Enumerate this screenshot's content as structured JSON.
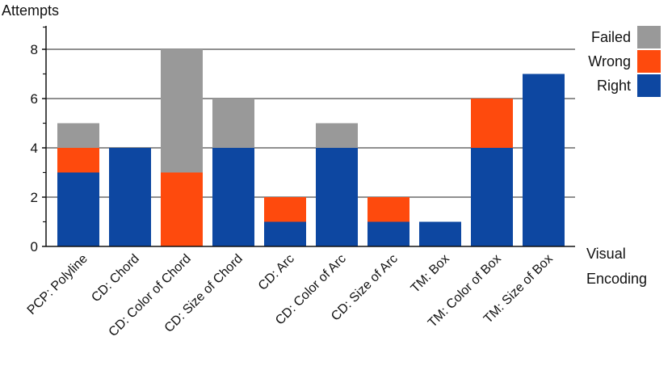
{
  "chart_data": {
    "type": "bar",
    "stacked": true,
    "ylabel": "Attempts",
    "xlabel_line1": "Visual",
    "xlabel_line2": "Encoding",
    "ylim": [
      0,
      8
    ],
    "yticks": [
      0,
      2,
      4,
      6,
      8
    ],
    "grid": true,
    "legend_position": "top-right",
    "categories": [
      "PCP: Polyline",
      "CD: Chord",
      "CD: Color of Chord",
      "CD: Size of Chord",
      "CD: Arc",
      "CD: Color of Arc",
      "CD: Size of Arc",
      "TM: Box",
      "TM: Color of Box",
      "TM: Size of Box"
    ],
    "series": [
      {
        "name": "Right",
        "color": "#0d47a1",
        "values": [
          3,
          4,
          0,
          4,
          1,
          4,
          1,
          1,
          4,
          7
        ]
      },
      {
        "name": "Wrong",
        "color": "#fe4a0d",
        "values": [
          1,
          0,
          3,
          0,
          1,
          0,
          1,
          0,
          2,
          0
        ]
      },
      {
        "name": "Failed",
        "color": "#999999",
        "values": [
          1,
          0,
          5,
          2,
          0,
          1,
          0,
          0,
          0,
          0
        ]
      }
    ],
    "legend_order": [
      "Failed",
      "Wrong",
      "Right"
    ]
  }
}
